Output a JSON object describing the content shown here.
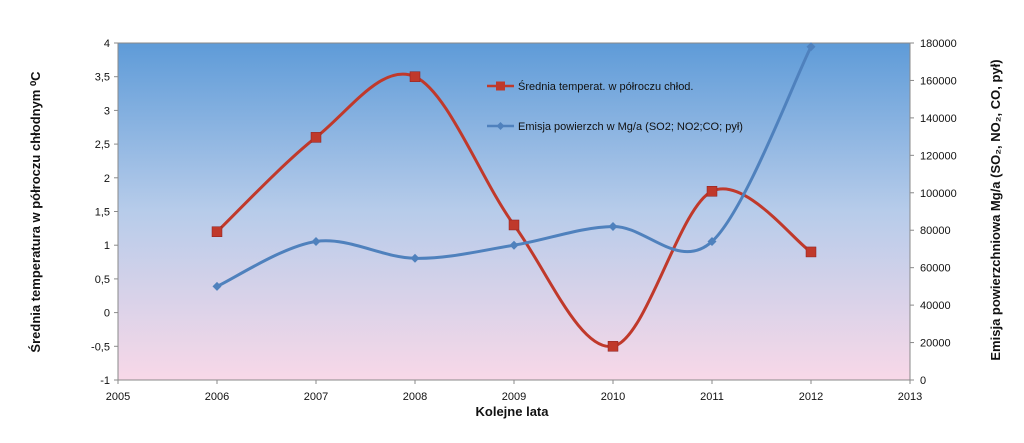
{
  "chart_data": {
    "type": "line",
    "xlabel": "Kolejne lata",
    "ylabel_left": "Średnia temperatura w półroczu chłodnym ⁰C",
    "ylabel_right": "Emisja powierzchniowa Mg/a  (SO₂, NO₂, CO, pył)",
    "xlim": [
      2005,
      2013
    ],
    "x_ticks": [
      "2005",
      "2006",
      "2007",
      "2008",
      "2009",
      "2010",
      "2011",
      "2012",
      "2013"
    ],
    "ylim_left": [
      -1,
      4
    ],
    "y_left_ticks": [
      "-1",
      "-0,5",
      "0",
      "0,5",
      "1",
      "1,5",
      "2",
      "2,5",
      "3",
      "3,5",
      "4"
    ],
    "ylim_right": [
      0,
      180000
    ],
    "y_right_ticks": [
      "0",
      "20000",
      "40000",
      "60000",
      "80000",
      "100000",
      "120000",
      "140000",
      "160000",
      "180000"
    ],
    "grid": false,
    "legend_position": "inside-top-center",
    "series": [
      {
        "name": "Średnia temperat. w półroczu chłod.",
        "axis": "left",
        "marker": "square",
        "color": "#C0392B",
        "x": [
          2006,
          2007,
          2008,
          2009,
          2010,
          2011,
          2012
        ],
        "values": [
          1.2,
          2.6,
          3.5,
          1.3,
          -0.5,
          1.8,
          0.9
        ]
      },
      {
        "name": "Emisja powierzch w Mg/a (SO2; NO2;CO; pył)",
        "axis": "right",
        "marker": "diamond",
        "color": "#4F81BD",
        "x": [
          2006,
          2007,
          2008,
          2009,
          2010,
          2011,
          2012
        ],
        "values": [
          50000,
          74000,
          65000,
          72000,
          82000,
          74000,
          178000
        ]
      }
    ],
    "background_gradient": [
      "#5E9BD8",
      "#B7CCEA",
      "#F8D8E8"
    ]
  }
}
